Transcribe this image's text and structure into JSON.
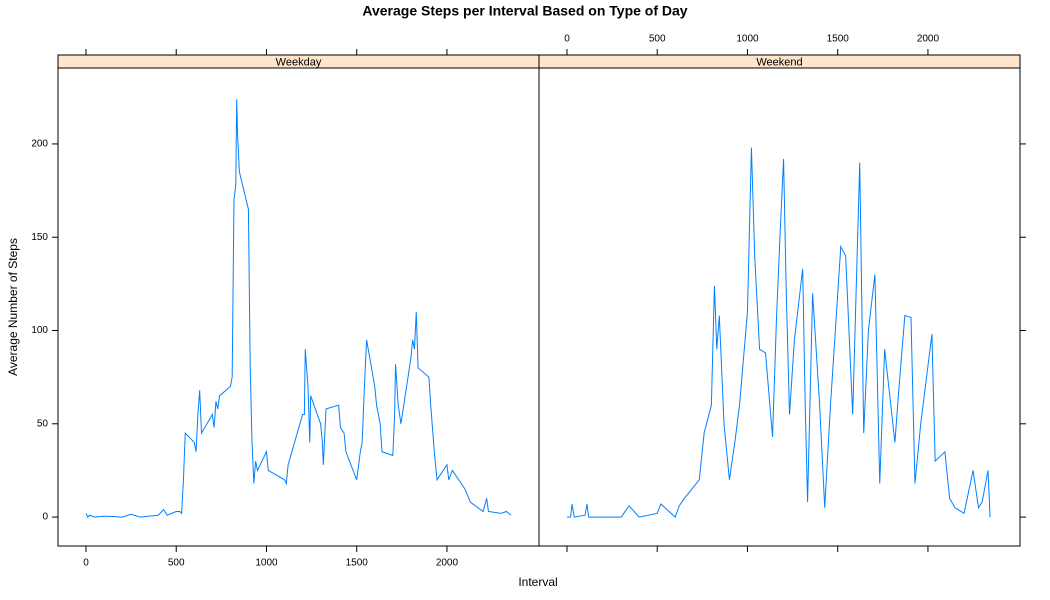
{
  "chart_data": {
    "type": "line",
    "title": "Average Steps per Interval Based on Type of Day",
    "x_label": "Interval",
    "y_label": "Average Number of Steps",
    "xlim": [
      -155,
      2510
    ],
    "ylim": [
      -15.5,
      240.7
    ],
    "xticks": [
      0,
      500,
      1000,
      1500,
      2000
    ],
    "yticks": [
      0,
      50,
      100,
      150,
      200
    ],
    "color": "#0080ff",
    "strip_color": "#ffe5cc",
    "panels": [
      {
        "name": "Weekday",
        "x": [
          0,
          10,
          20,
          50,
          100,
          150,
          200,
          250,
          300,
          350,
          400,
          430,
          450,
          500,
          520,
          530,
          540,
          550,
          600,
          610,
          620,
          630,
          640,
          700,
          710,
          720,
          730,
          740,
          800,
          810,
          820,
          830,
          835,
          840,
          850,
          900,
          910,
          920,
          930,
          940,
          950,
          1000,
          1010,
          1100,
          1110,
          1120,
          1200,
          1210,
          1215,
          1230,
          1240,
          1245,
          1300,
          1310,
          1315,
          1330,
          1400,
          1410,
          1430,
          1440,
          1500,
          1520,
          1530,
          1545,
          1555,
          1600,
          1610,
          1630,
          1640,
          1700,
          1710,
          1715,
          1730,
          1745,
          1800,
          1810,
          1820,
          1830,
          1840,
          1900,
          1910,
          1930,
          1945,
          2000,
          2010,
          2030,
          2100,
          2130,
          2200,
          2220,
          2230,
          2300,
          2330,
          2355
        ],
        "values": [
          2,
          0,
          1,
          0,
          0.5,
          0.3,
          0,
          1.5,
          0,
          0.5,
          1,
          4,
          1,
          3,
          3,
          2,
          20,
          45,
          40,
          35,
          55,
          68,
          45,
          55,
          48,
          62,
          58,
          65,
          70,
          75,
          170,
          178,
          224,
          205,
          185,
          165,
          80,
          40,
          18,
          30,
          25,
          35,
          25,
          20,
          18,
          28,
          55,
          55,
          90,
          70,
          40,
          65,
          50,
          40,
          28,
          58,
          60,
          48,
          45,
          35,
          20,
          35,
          40,
          75,
          95,
          70,
          60,
          50,
          35,
          33,
          55,
          82,
          60,
          50,
          85,
          95,
          90,
          110,
          80,
          75,
          60,
          35,
          20,
          28,
          20,
          25,
          15,
          8,
          3,
          10,
          3,
          2,
          3,
          1
        ]
      },
      {
        "name": "Weekend",
        "x": [
          0,
          20,
          28,
          40,
          100,
          111,
          120,
          200,
          300,
          344,
          400,
          500,
          520,
          600,
          622,
          650,
          700,
          733,
          760,
          800,
          817,
          830,
          844,
          870,
          900,
          930,
          956,
          1000,
          1022,
          1040,
          1067,
          1100,
          1139,
          1161,
          1180,
          1200,
          1215,
          1233,
          1260,
          1306,
          1320,
          1333,
          1361,
          1400,
          1428,
          1460,
          1517,
          1544,
          1583,
          1622,
          1644,
          1670,
          1706,
          1733,
          1760,
          1817,
          1840,
          1872,
          1906,
          1928,
          1960,
          2022,
          2040,
          2094,
          2120,
          2150,
          2200,
          2250,
          2280,
          2300,
          2333,
          2344
        ],
        "values": [
          0,
          0,
          7,
          0,
          1,
          7,
          0,
          0,
          0,
          6,
          0,
          2,
          7,
          0,
          6,
          10,
          16,
          20,
          45,
          60,
          124,
          90,
          108,
          50,
          20,
          40,
          60,
          110,
          198,
          140,
          90,
          88,
          43,
          107,
          150,
          192,
          120,
          55,
          95,
          133,
          60,
          8,
          120,
          60,
          5,
          60,
          145,
          140,
          55,
          190,
          45,
          100,
          130,
          18,
          90,
          40,
          70,
          108,
          107,
          18,
          50,
          98,
          30,
          35,
          10,
          5,
          2,
          25,
          5,
          8,
          25,
          0
        ]
      }
    ]
  }
}
